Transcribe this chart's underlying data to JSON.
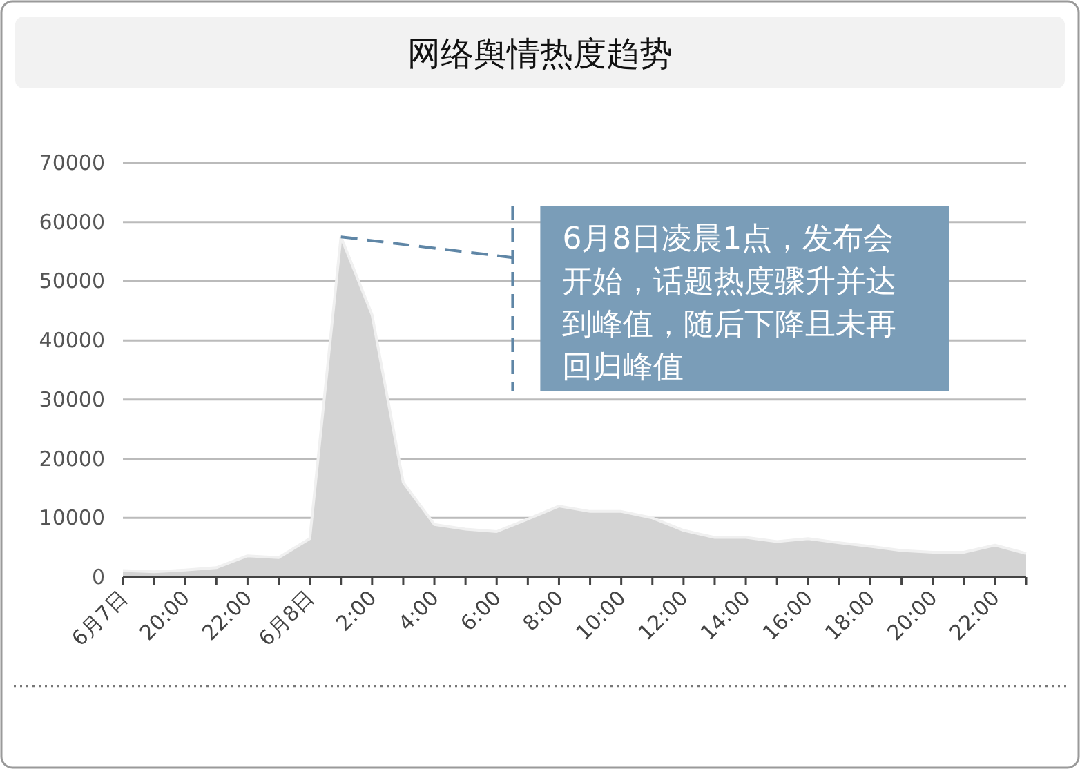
{
  "chart_data": {
    "type": "area",
    "title": "网络舆情热度趋势",
    "categories": [
      "6月7日",
      null,
      "20:00",
      null,
      "22:00",
      null,
      "6月8日",
      null,
      "2:00",
      null,
      "4:00",
      null,
      "6:00",
      null,
      "8:00",
      null,
      "10:00",
      null,
      "12:00",
      null,
      "14:00",
      null,
      "16:00",
      null,
      "18:00",
      null,
      "20:00",
      null,
      "22:00",
      null
    ],
    "series": [
      {
        "color": "#d4d4d4",
        "values": [
          1100,
          900,
          1200,
          1600,
          3600,
          3300,
          6500,
          57500,
          44300,
          16000,
          8900,
          8100,
          7700,
          9800,
          12000,
          11100,
          11100,
          10000,
          7900,
          6700,
          6700,
          6000,
          6500,
          5800,
          5200,
          4500,
          4200,
          4200,
          5400,
          4000
        ]
      }
    ],
    "ylim": [
      0,
      70000
    ],
    "yticks": [
      0,
      10000,
      20000,
      30000,
      40000,
      50000,
      60000,
      70000
    ],
    "grid": "y",
    "annotations": [
      "6月8日凌晨1点，发布会开始，话题热度骤升并达到峰值，随后下降且未再回归峰值"
    ]
  }
}
